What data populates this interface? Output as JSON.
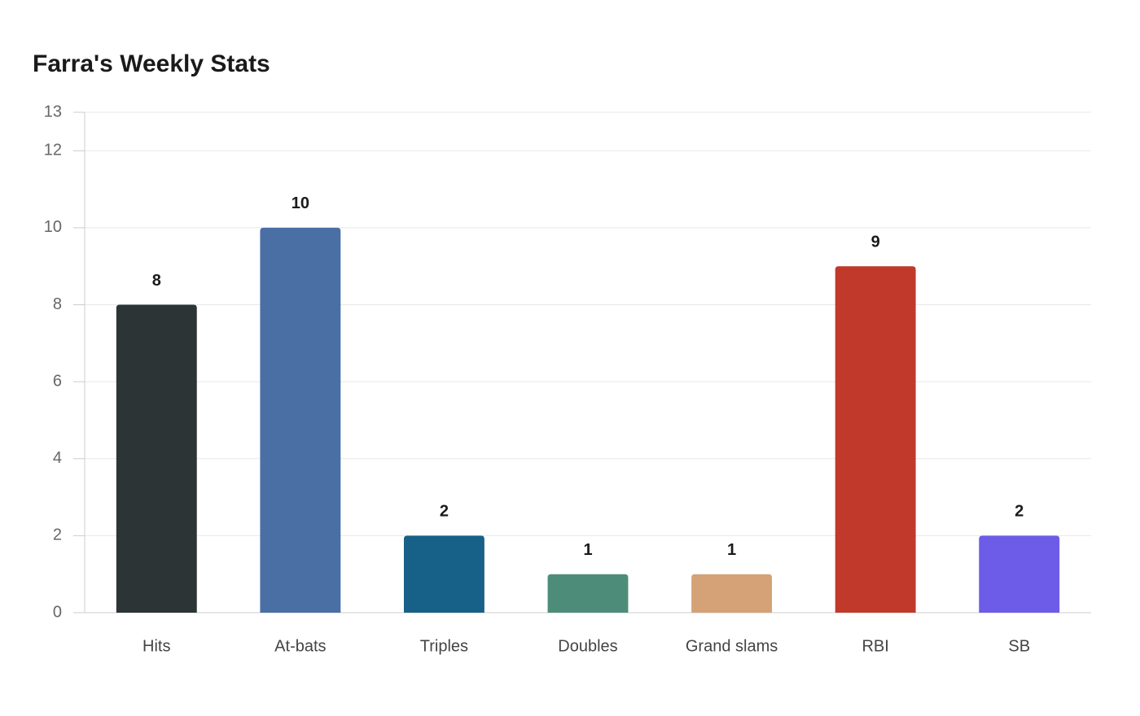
{
  "chart_data": {
    "type": "bar",
    "title": "Farra's Weekly Stats",
    "categories": [
      "Hits",
      "At-bats",
      "Triples",
      "Doubles",
      "Grand slams",
      "RBI",
      "SB"
    ],
    "values": [
      8,
      10,
      2,
      1,
      1,
      9,
      2
    ],
    "colors": [
      "#2d3436",
      "#4a6fa5",
      "#176087",
      "#4e8c7a",
      "#d4a276",
      "#c0392b",
      "#6c5ce7"
    ],
    "ylim": [
      0,
      13
    ],
    "yticks": [
      0,
      2,
      4,
      6,
      8,
      10,
      12,
      13
    ],
    "grid": true
  }
}
